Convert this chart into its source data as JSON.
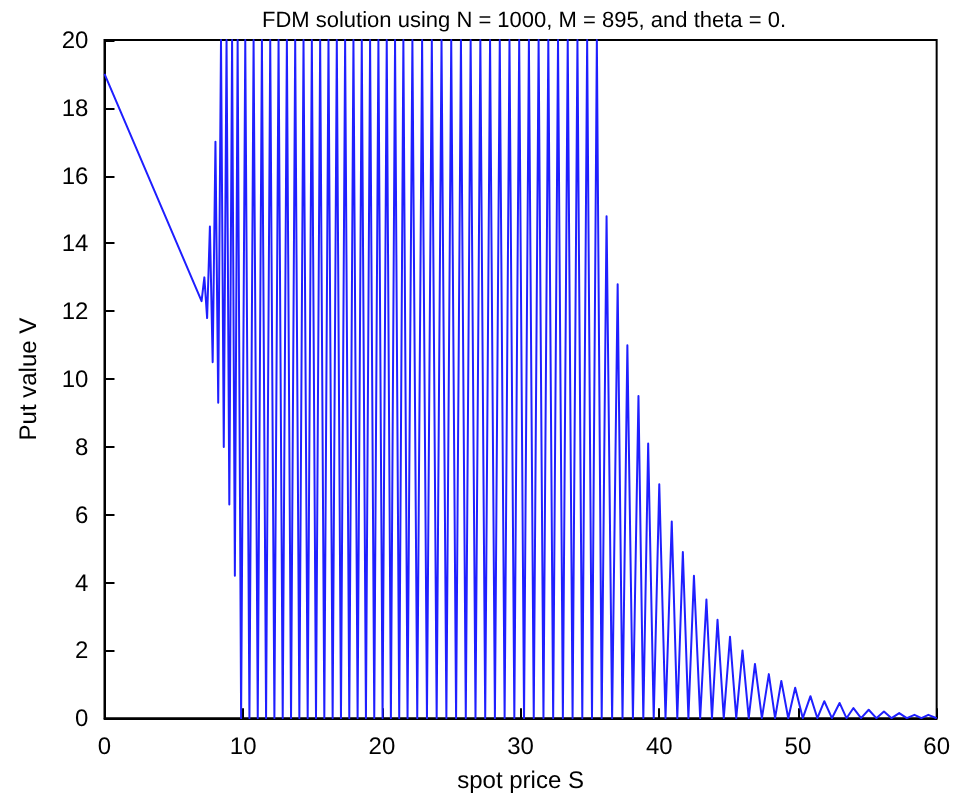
{
  "chart_data": {
    "type": "line",
    "title": "FDM solution using N = 1000, M = 895, and theta = 0.",
    "xlabel": "spot price S",
    "ylabel": "Put value V",
    "xlim": [
      0,
      60
    ],
    "ylim": [
      0,
      20
    ],
    "xticks": [
      0,
      10,
      20,
      30,
      40,
      50,
      60
    ],
    "yticks": [
      0,
      2,
      4,
      6,
      8,
      10,
      12,
      14,
      16,
      18,
      20
    ],
    "grid": false,
    "marker": "none",
    "line_style": "solid",
    "series": [
      {
        "color": "#1f1fff",
        "x": [
          0,
          7,
          7.2,
          7.4,
          7.6,
          7.8,
          8.0,
          8.2,
          8.4,
          8.6,
          8.8,
          9.0,
          9.2,
          9.4,
          9.6,
          9.85,
          10.15,
          10.45,
          10.75,
          11.05,
          11.35,
          11.65,
          11.95,
          12.25,
          12.55,
          12.85,
          13.15,
          13.45,
          13.75,
          14.05,
          14.35,
          14.65,
          14.95,
          15.25,
          15.55,
          15.85,
          16.15,
          16.45,
          16.75,
          17.05,
          17.35,
          17.65,
          17.95,
          18.25,
          18.55,
          18.85,
          19.15,
          19.45,
          19.75,
          20.05,
          20.35,
          20.65,
          20.95,
          21.25,
          21.55,
          21.85,
          22.2,
          22.55,
          22.9,
          23.25,
          23.6,
          23.95,
          24.3,
          24.65,
          25.0,
          25.35,
          25.7,
          26.05,
          26.4,
          26.75,
          27.1,
          27.45,
          27.8,
          28.15,
          28.5,
          28.85,
          29.2,
          29.55,
          29.9,
          30.25,
          30.6,
          30.95,
          31.3,
          31.65,
          32.0,
          32.35,
          32.7,
          33.05,
          33.4,
          33.75,
          34.1,
          34.45,
          34.8,
          35.15,
          35.5,
          35.85,
          36.2,
          36.6,
          37.0,
          37.35,
          37.7,
          38.1,
          38.5,
          38.85,
          39.2,
          39.6,
          40.0,
          40.45,
          40.9,
          41.3,
          41.7,
          42.1,
          42.5,
          42.95,
          43.4,
          43.8,
          44.2,
          44.65,
          45.1,
          45.55,
          46.0,
          46.45,
          46.9,
          47.4,
          47.9,
          48.35,
          48.8,
          49.3,
          49.8,
          50.35,
          50.9,
          51.4,
          51.9,
          52.45,
          53.0,
          53.5,
          54.0,
          54.55,
          55.1,
          55.65,
          56.2,
          56.75,
          57.3,
          57.85,
          58.4,
          58.9,
          59.4,
          60
        ],
        "values": [
          19,
          12.3,
          13,
          11.8,
          14.5,
          10.5,
          17,
          9.3,
          20,
          8,
          20,
          6.3,
          20,
          4.2,
          20,
          0,
          20,
          0,
          20,
          0,
          20,
          0,
          20,
          0,
          20,
          0,
          20,
          0,
          20,
          0,
          20,
          0,
          20,
          0,
          20,
          0,
          20,
          0,
          20,
          0,
          20,
          0,
          20,
          0,
          20,
          0,
          20,
          0,
          20,
          0,
          20,
          0,
          20,
          0,
          20,
          0,
          20,
          0,
          20,
          0,
          20,
          0,
          20,
          0,
          20,
          0,
          20,
          0,
          20,
          0,
          20,
          0,
          20,
          0,
          20,
          0,
          20,
          0,
          20,
          0,
          20,
          0,
          20,
          0,
          20,
          0,
          20,
          0,
          20,
          0,
          20,
          0,
          20,
          0,
          20,
          0,
          14.8,
          0,
          12.8,
          0,
          11.0,
          0,
          9.5,
          0,
          8.1,
          0,
          6.9,
          0,
          5.8,
          0,
          4.9,
          0,
          4.2,
          0,
          3.5,
          0,
          2.9,
          0,
          2.4,
          0,
          2.0,
          0,
          1.6,
          0,
          1.3,
          0,
          1.1,
          0,
          0.9,
          0,
          0.65,
          0,
          0.5,
          0,
          0.45,
          0,
          0.3,
          0,
          0.25,
          0,
          0.2,
          0,
          0.15,
          0,
          0.1,
          0,
          0.1,
          0
        ]
      }
    ]
  }
}
